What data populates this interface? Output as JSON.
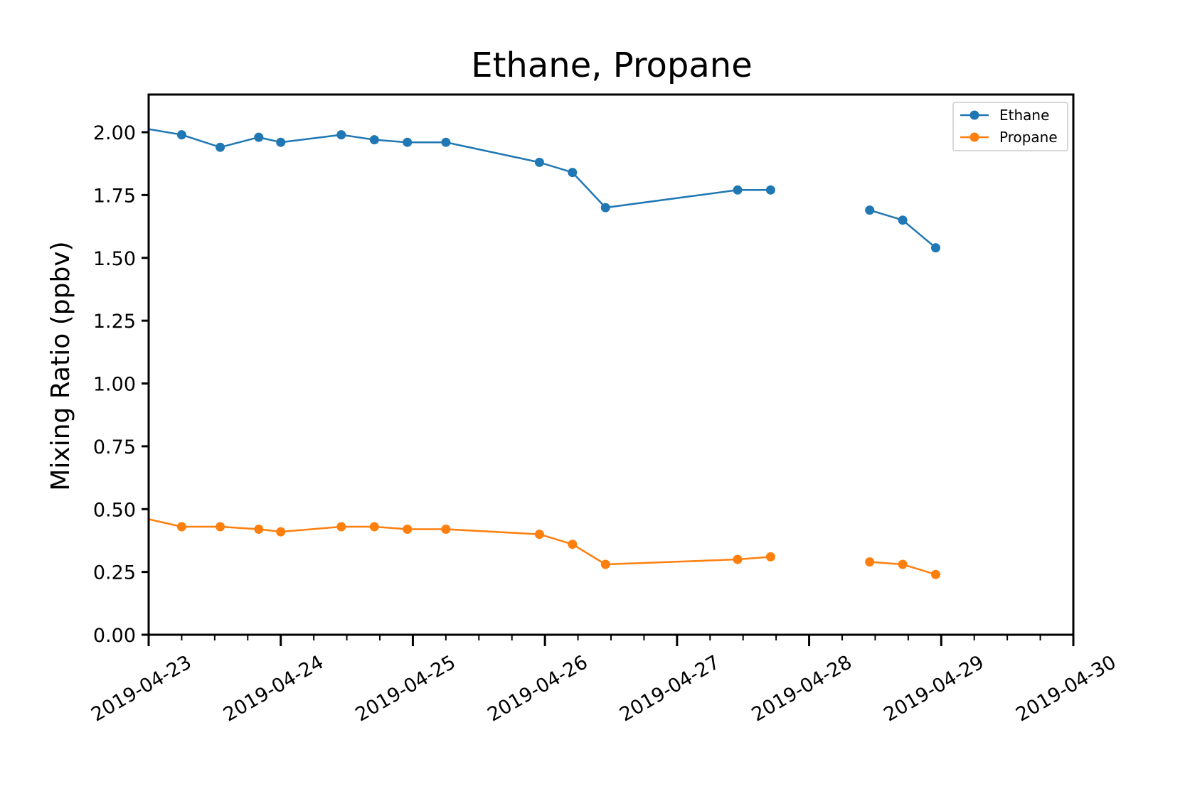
{
  "chart_data": {
    "type": "line",
    "title": "Ethane, Propane",
    "xlabel": "",
    "ylabel": "Mixing Ratio (ppbv)",
    "xlim": [
      "2019-04-23 00:00",
      "2019-04-30 00:00"
    ],
    "ylim": [
      0,
      2.15
    ],
    "x_ticks": [
      "2019-04-23",
      "2019-04-24",
      "2019-04-25",
      "2019-04-26",
      "2019-04-27",
      "2019-04-28",
      "2019-04-29",
      "2019-04-30"
    ],
    "y_ticks": [
      "0.00",
      "0.25",
      "0.50",
      "0.75",
      "1.00",
      "1.25",
      "1.50",
      "1.75",
      "2.00"
    ],
    "grid": false,
    "legend_position": "top-right",
    "colors": {
      "Ethane": "#1f77b4",
      "Propane": "#ff7f0e"
    },
    "series": [
      {
        "name": "Ethane",
        "color": "#1f77b4",
        "segments": [
          [
            [
              "2019-04-22 22:00",
              2.02
            ],
            [
              "2019-04-23 06:00",
              1.99
            ],
            [
              "2019-04-23 13:00",
              1.94
            ],
            [
              "2019-04-23 20:00",
              1.98
            ],
            [
              "2019-04-24 00:00",
              1.96
            ],
            [
              "2019-04-24 11:00",
              1.99
            ],
            [
              "2019-04-24 17:00",
              1.97
            ],
            [
              "2019-04-24 23:00",
              1.96
            ],
            [
              "2019-04-25 06:00",
              1.96
            ],
            [
              "2019-04-25 23:00",
              1.88
            ],
            [
              "2019-04-26 05:00",
              1.84
            ],
            [
              "2019-04-26 11:00",
              1.7
            ],
            [
              "2019-04-27 11:00",
              1.77
            ],
            [
              "2019-04-27 17:00",
              1.77
            ]
          ],
          [
            [
              "2019-04-28 11:00",
              1.69
            ],
            [
              "2019-04-28 17:00",
              1.65
            ],
            [
              "2019-04-28 23:00",
              1.54
            ]
          ]
        ]
      },
      {
        "name": "Propane",
        "color": "#ff7f0e",
        "segments": [
          [
            [
              "2019-04-22 22:00",
              0.47
            ],
            [
              "2019-04-23 06:00",
              0.43
            ],
            [
              "2019-04-23 13:00",
              0.43
            ],
            [
              "2019-04-23 20:00",
              0.42
            ],
            [
              "2019-04-24 00:00",
              0.41
            ],
            [
              "2019-04-24 11:00",
              0.43
            ],
            [
              "2019-04-24 17:00",
              0.43
            ],
            [
              "2019-04-24 23:00",
              0.42
            ],
            [
              "2019-04-25 06:00",
              0.42
            ],
            [
              "2019-04-25 23:00",
              0.4
            ],
            [
              "2019-04-26 05:00",
              0.36
            ],
            [
              "2019-04-26 11:00",
              0.28
            ],
            [
              "2019-04-27 11:00",
              0.3
            ],
            [
              "2019-04-27 17:00",
              0.31
            ]
          ],
          [
            [
              "2019-04-28 11:00",
              0.29
            ],
            [
              "2019-04-28 17:00",
              0.28
            ],
            [
              "2019-04-28 23:00",
              0.24
            ]
          ]
        ]
      }
    ]
  }
}
